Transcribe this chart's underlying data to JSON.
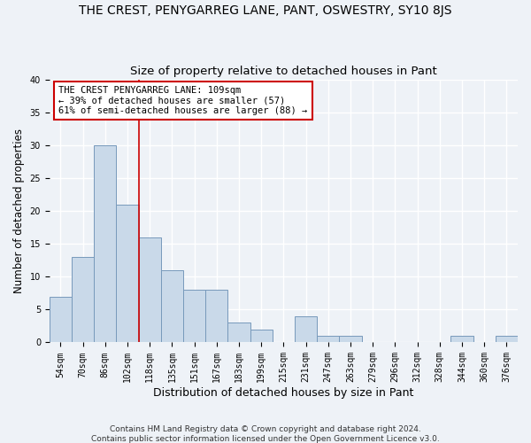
{
  "title": "THE CREST, PENYGARREG LANE, PANT, OSWESTRY, SY10 8JS",
  "subtitle": "Size of property relative to detached houses in Pant",
  "xlabel": "Distribution of detached houses by size in Pant",
  "ylabel": "Number of detached properties",
  "footer_line1": "Contains HM Land Registry data © Crown copyright and database right 2024.",
  "footer_line2": "Contains public sector information licensed under the Open Government Licence v3.0.",
  "categories": [
    "54sqm",
    "70sqm",
    "86sqm",
    "102sqm",
    "118sqm",
    "135sqm",
    "151sqm",
    "167sqm",
    "183sqm",
    "199sqm",
    "215sqm",
    "231sqm",
    "247sqm",
    "263sqm",
    "279sqm",
    "296sqm",
    "312sqm",
    "328sqm",
    "344sqm",
    "360sqm",
    "376sqm"
  ],
  "values": [
    7,
    13,
    30,
    21,
    16,
    11,
    8,
    8,
    3,
    2,
    0,
    4,
    1,
    1,
    0,
    0,
    0,
    0,
    1,
    0,
    1
  ],
  "bar_color": "#c9d9e9",
  "bar_edge_color": "#7799bb",
  "ylim": [
    0,
    40
  ],
  "yticks": [
    0,
    5,
    10,
    15,
    20,
    25,
    30,
    35,
    40
  ],
  "annotation_text_line1": "THE CREST PENYGARREG LANE: 109sqm",
  "annotation_text_line2": "← 39% of detached houses are smaller (57)",
  "annotation_text_line3": "61% of semi-detached houses are larger (88) →",
  "vline_color": "#cc0000",
  "annotation_box_edge_color": "#cc0000",
  "background_color": "#eef2f7",
  "grid_color": "#ffffff",
  "title_fontsize": 10,
  "subtitle_fontsize": 9.5,
  "xlabel_fontsize": 9,
  "ylabel_fontsize": 8.5,
  "tick_fontsize": 7,
  "annotation_fontsize": 7.5,
  "footer_fontsize": 6.5,
  "vline_x_index": 3.5
}
